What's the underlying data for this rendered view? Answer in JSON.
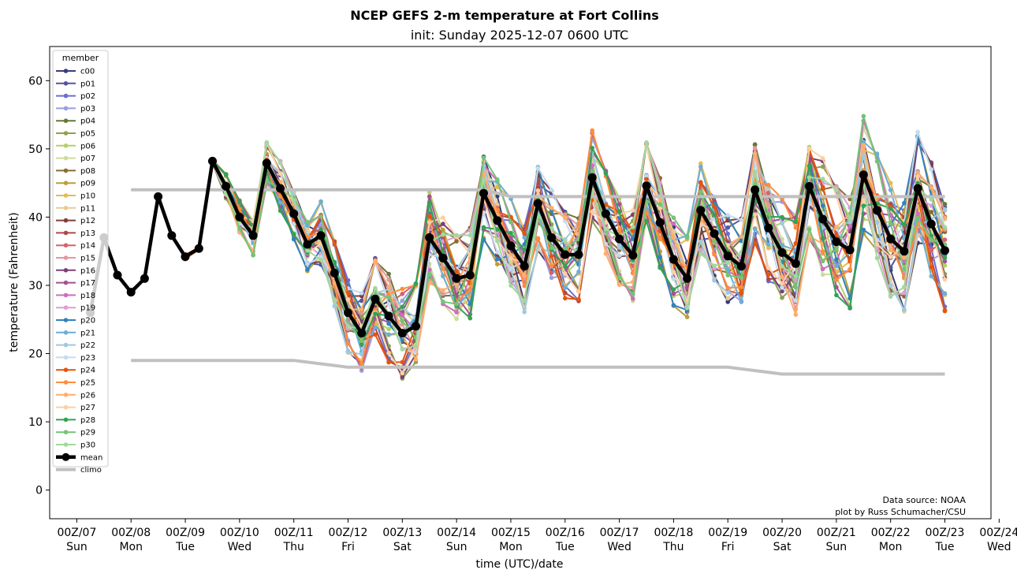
{
  "chart_data": {
    "type": "line",
    "title": "NCEP GEFS 2-m temperature at Fort Collins",
    "subtitle": "init: Sunday 2025-12-07 0600 UTC",
    "xlabel": "time (UTC)/date",
    "ylabel": "temperature (Fahrenheit)",
    "ylim": [
      -4.2,
      65
    ],
    "xlim": [
      -0.5,
      16.85
    ],
    "x_unit": "days since 2025-12-07 00Z",
    "x_ticks": [
      {
        "top": "00Z/07",
        "bottom": "Sun"
      },
      {
        "top": "00Z/08",
        "bottom": "Mon"
      },
      {
        "top": "00Z/09",
        "bottom": "Tue"
      },
      {
        "top": "00Z/10",
        "bottom": "Wed"
      },
      {
        "top": "00Z/11",
        "bottom": "Thu"
      },
      {
        "top": "00Z/12",
        "bottom": "Fri"
      },
      {
        "top": "00Z/13",
        "bottom": "Sat"
      },
      {
        "top": "00Z/14",
        "bottom": "Sun"
      },
      {
        "top": "00Z/15",
        "bottom": "Mon"
      },
      {
        "top": "00Z/16",
        "bottom": "Tue"
      },
      {
        "top": "00Z/17",
        "bottom": "Wed"
      },
      {
        "top": "00Z/18",
        "bottom": "Thu"
      },
      {
        "top": "00Z/19",
        "bottom": "Fri"
      },
      {
        "top": "00Z/20",
        "bottom": "Sat"
      },
      {
        "top": "00Z/21",
        "bottom": "Sun"
      },
      {
        "top": "00Z/22",
        "bottom": "Mon"
      },
      {
        "top": "00Z/23",
        "bottom": "Tue"
      },
      {
        "top": "00Z/24",
        "bottom": "Wed"
      }
    ],
    "y_ticks": [
      0,
      10,
      20,
      30,
      40,
      50,
      60
    ],
    "grid": false,
    "legend": {
      "title": "member",
      "position": "top-left"
    },
    "mean": {
      "name": "mean",
      "color": "#000000",
      "values": [
        26,
        37,
        31.5,
        29,
        31,
        43,
        37.3,
        34.2,
        35.4,
        48.2,
        44.5,
        40,
        37.3,
        47.9,
        44.2,
        40.5,
        36,
        37.3,
        31.8,
        26,
        23,
        28,
        25.5,
        23,
        24,
        37,
        34,
        31,
        31.5,
        43.5,
        39.5,
        35.8,
        32.8,
        42,
        37,
        34.5,
        34.5,
        45.8,
        40.5,
        36.8,
        34.4,
        44.6,
        39.2,
        33.8,
        31,
        41,
        37.6,
        34.3,
        32.8,
        44,
        38.4,
        34.8,
        33.2,
        44.5,
        39.7,
        36.4,
        35.2,
        46.2,
        41,
        36.8,
        35,
        44.2,
        39,
        35.1
      ]
    },
    "climo": {
      "name": "climo",
      "color": "#c0c0c0",
      "x": [
        1,
        2,
        3,
        4,
        5,
        6,
        7,
        7.5,
        8,
        9,
        10,
        11,
        12,
        13,
        14,
        15,
        16
      ],
      "upper": [
        44,
        44,
        44,
        44,
        44,
        44,
        44,
        44,
        43,
        43,
        43,
        43,
        43,
        43,
        43,
        43,
        43
      ],
      "lower": [
        19,
        19,
        19,
        19,
        18,
        18,
        18,
        18,
        18,
        18,
        18,
        18,
        18,
        17,
        17,
        17,
        17
      ]
    },
    "spread_base": [
      0,
      0,
      0.2,
      -0.3,
      -0.1,
      0,
      0.2,
      -0.4,
      -0.2,
      0.3,
      2,
      2.5,
      3,
      3.5,
      4,
      4,
      4,
      5,
      5.5,
      6,
      6,
      6.5,
      7,
      7,
      7,
      7,
      7,
      7,
      7,
      7,
      7,
      7,
      7,
      7,
      7,
      7,
      7,
      7,
      7,
      7,
      7,
      7,
      7,
      7,
      7,
      7,
      7,
      7,
      7,
      8,
      8,
      8,
      8,
      8,
      9,
      9,
      9,
      9,
      9,
      9,
      9,
      9,
      9,
      9
    ],
    "series": [
      {
        "name": "c00",
        "color": "#393b79",
        "offset": 0
      },
      {
        "name": "p01",
        "color": "#5254a3",
        "offset": 0
      },
      {
        "name": "p02",
        "color": "#6b6ecf",
        "offset": 0
      },
      {
        "name": "p03",
        "color": "#9c9ede",
        "offset": 0
      },
      {
        "name": "p04",
        "color": "#637939",
        "offset": 0
      },
      {
        "name": "p05",
        "color": "#8ca252",
        "offset": 0
      },
      {
        "name": "p06",
        "color": "#b5cf6b",
        "offset": 0
      },
      {
        "name": "p07",
        "color": "#cedb9c",
        "offset": 0
      },
      {
        "name": "p08",
        "color": "#8c6d31",
        "offset": 0
      },
      {
        "name": "p09",
        "color": "#bd9e39",
        "offset": 0
      },
      {
        "name": "p10",
        "color": "#e7ba52",
        "offset": 0
      },
      {
        "name": "p11",
        "color": "#e7cb94",
        "offset": 0
      },
      {
        "name": "p12",
        "color": "#843c39",
        "offset": 0
      },
      {
        "name": "p13",
        "color": "#ad494a",
        "offset": 0
      },
      {
        "name": "p14",
        "color": "#d6616b",
        "offset": 0
      },
      {
        "name": "p15",
        "color": "#e7969c",
        "offset": 0
      },
      {
        "name": "p16",
        "color": "#7b4173",
        "offset": 0
      },
      {
        "name": "p17",
        "color": "#a55194",
        "offset": 0
      },
      {
        "name": "p18",
        "color": "#ce6dbd",
        "offset": 0
      },
      {
        "name": "p19",
        "color": "#de9ed6",
        "offset": 0
      },
      {
        "name": "p20",
        "color": "#3182bd",
        "offset": 0
      },
      {
        "name": "p21",
        "color": "#6baed6",
        "offset": 0
      },
      {
        "name": "p22",
        "color": "#9ecae1",
        "offset": 0
      },
      {
        "name": "p23",
        "color": "#c6dbef",
        "offset": 0
      },
      {
        "name": "p24",
        "color": "#e6550d",
        "offset": 0
      },
      {
        "name": "p25",
        "color": "#fd8d3c",
        "offset": 0
      },
      {
        "name": "p26",
        "color": "#fdae6b",
        "offset": 0
      },
      {
        "name": "p27",
        "color": "#fdd0a2",
        "offset": 0
      },
      {
        "name": "p28",
        "color": "#31a354",
        "offset": 0
      },
      {
        "name": "p29",
        "color": "#74c476",
        "offset": 0
      },
      {
        "name": "p30",
        "color": "#a1d99b",
        "offset": 0
      }
    ]
  },
  "credits": {
    "line1": "Data source: NOAA",
    "line2": "plot by Russ Schumacher/CSU"
  }
}
